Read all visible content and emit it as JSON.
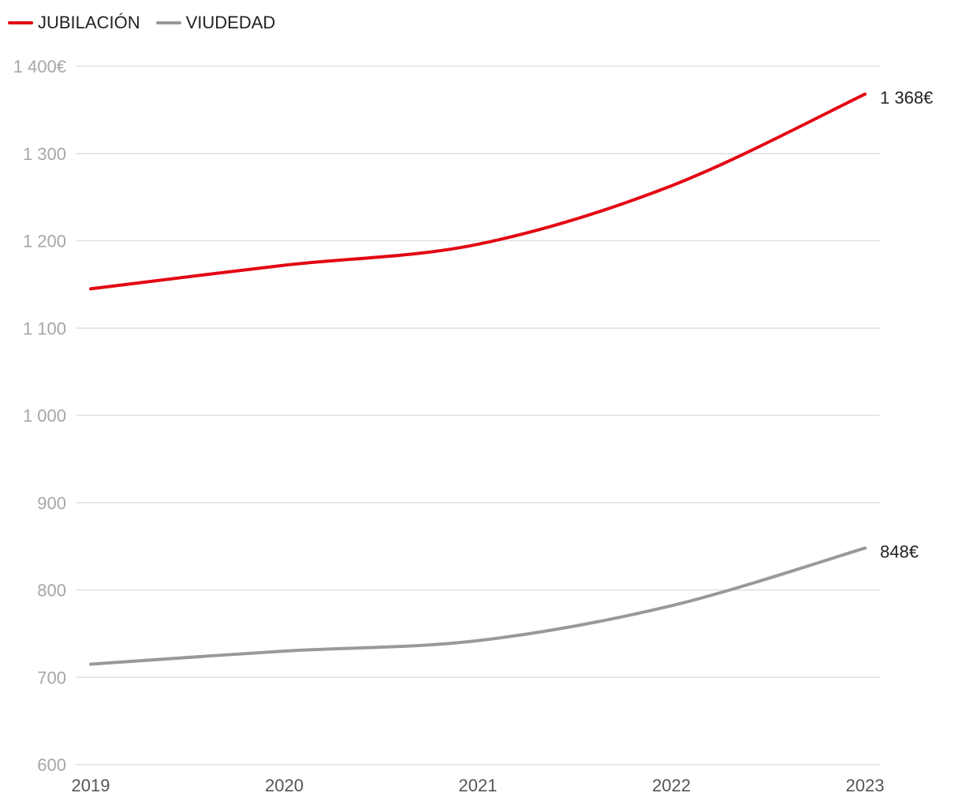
{
  "chart_data": {
    "type": "line",
    "categories": [
      "2019",
      "2020",
      "2021",
      "2022",
      "2023"
    ],
    "series": [
      {
        "name": "JUBILACIÓN",
        "color": "#e30613",
        "values": [
          1145,
          1172,
          1196,
          1263,
          1368
        ]
      },
      {
        "name": "VIUDEDAD",
        "color": "#999999",
        "values": [
          715,
          730,
          742,
          782,
          848
        ]
      }
    ],
    "end_labels": [
      "1 368€",
      "848€"
    ],
    "y_ticks": [
      {
        "value": 600,
        "label": "600"
      },
      {
        "value": 700,
        "label": "700"
      },
      {
        "value": 800,
        "label": "800"
      },
      {
        "value": 900,
        "label": "900"
      },
      {
        "value": 1000,
        "label": "1 000"
      },
      {
        "value": 1100,
        "label": "1 100"
      },
      {
        "value": 1200,
        "label": "1 200"
      },
      {
        "value": 1300,
        "label": "1 300"
      },
      {
        "value": 1400,
        "label": "1 400€"
      }
    ],
    "ylim": [
      600,
      1400
    ],
    "grid": true,
    "legend_position": "top-left",
    "colors": {
      "grid": "#e0e0e0",
      "tick_text": "#a6a6a6",
      "label_text": "#222222"
    }
  }
}
